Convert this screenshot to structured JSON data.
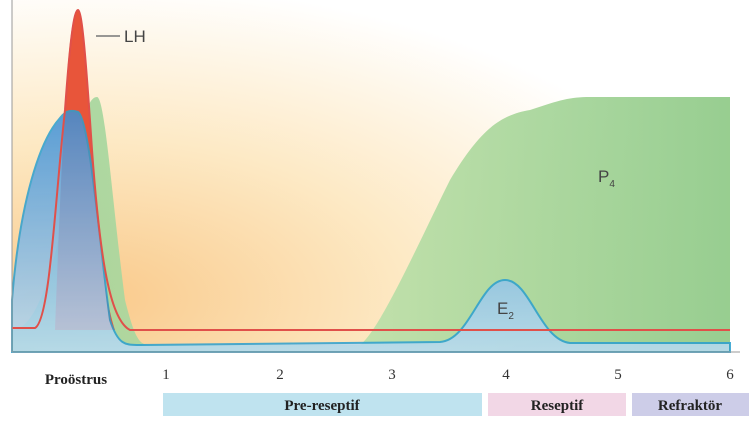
{
  "labels": {
    "lh": "LH",
    "p4": {
      "main": "P",
      "sub": "4"
    },
    "e2": {
      "main": "E",
      "sub": "2"
    }
  },
  "x_axis": {
    "start_label": "Proöstrus",
    "ticks": [
      1,
      2,
      3,
      4,
      5,
      6
    ]
  },
  "phases": [
    "Pre-reseptif",
    "Reseptif",
    "Refraktör"
  ]
}
